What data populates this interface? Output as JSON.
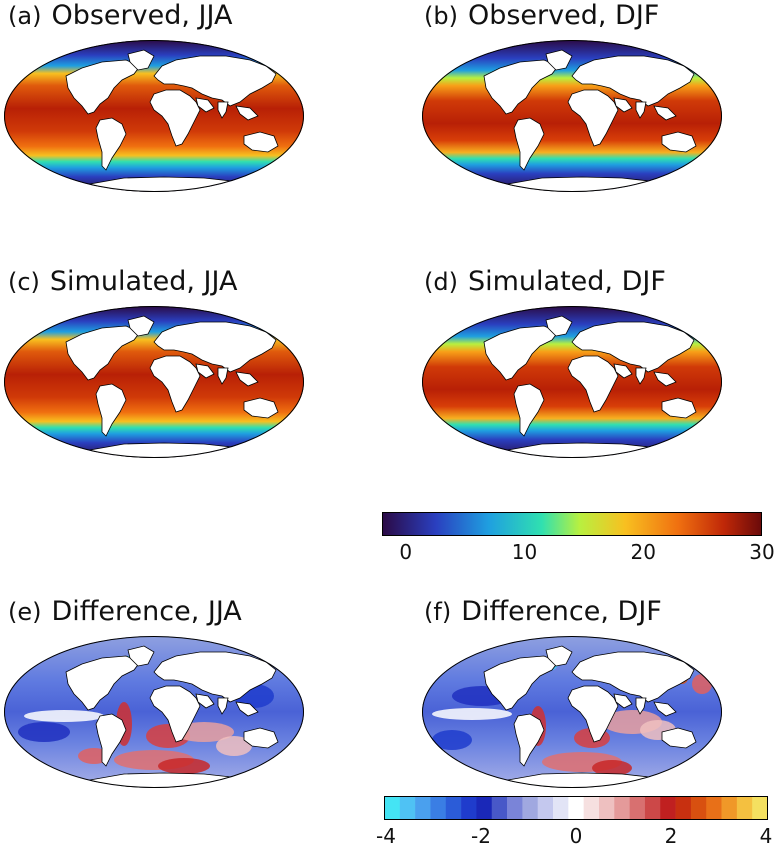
{
  "panels": [
    {
      "tag": "(a)",
      "title": "Observed, JJA",
      "kind": "sst",
      "season": "JJA"
    },
    {
      "tag": "(b)",
      "title": "Observed, DJF",
      "kind": "sst",
      "season": "DJF"
    },
    {
      "tag": "(c)",
      "title": "Simulated, JJA",
      "kind": "sst",
      "season": "JJA"
    },
    {
      "tag": "(d)",
      "title": "Simulated, DJF",
      "kind": "sst",
      "season": "DJF"
    },
    {
      "tag": "(e)",
      "title": "Difference, JJA",
      "kind": "diff",
      "season": "JJA"
    },
    {
      "tag": "(f)",
      "title": "Difference, DJF",
      "kind": "diff",
      "season": "DJF"
    }
  ],
  "chart_data": [
    {
      "type": "heatmap",
      "role": "colorbar",
      "applies_to": [
        "(a)",
        "(b)",
        "(c)",
        "(d)"
      ],
      "range": [
        -2,
        30
      ],
      "ticks": [
        0,
        10,
        20,
        30
      ],
      "tick_labels": [
        "0",
        "10",
        "20",
        "30"
      ],
      "colormap": "jet-like",
      "colors": [
        "#2b0a45",
        "#2a3fbf",
        "#1f9fe0",
        "#30e0b0",
        "#b8f040",
        "#f8c020",
        "#f07010",
        "#c02808",
        "#6a0a0a"
      ]
    },
    {
      "type": "heatmap",
      "role": "colorbar",
      "applies_to": [
        "(e)",
        "(f)"
      ],
      "range": [
        -4,
        4
      ],
      "ticks": [
        -4,
        -2,
        0,
        2,
        4
      ],
      "tick_labels": [
        "-4",
        "-2",
        "0",
        "2",
        "4"
      ],
      "colormap": "diverging",
      "colors": [
        "#44e4f4",
        "#4fc2f4",
        "#4aa0ee",
        "#3a7ee4",
        "#2b5cd8",
        "#1f3ccc",
        "#1a28b8",
        "#4858c8",
        "#7a84d8",
        "#a0a8e0",
        "#c4c8ee",
        "#e2e4f6",
        "#ffffff",
        "#f6e0e0",
        "#eec0c0",
        "#e49a9a",
        "#d87070",
        "#cc4848",
        "#c02020",
        "#c83010",
        "#d85010",
        "#e87018",
        "#f09828",
        "#f4c040",
        "#f4e060"
      ]
    }
  ]
}
